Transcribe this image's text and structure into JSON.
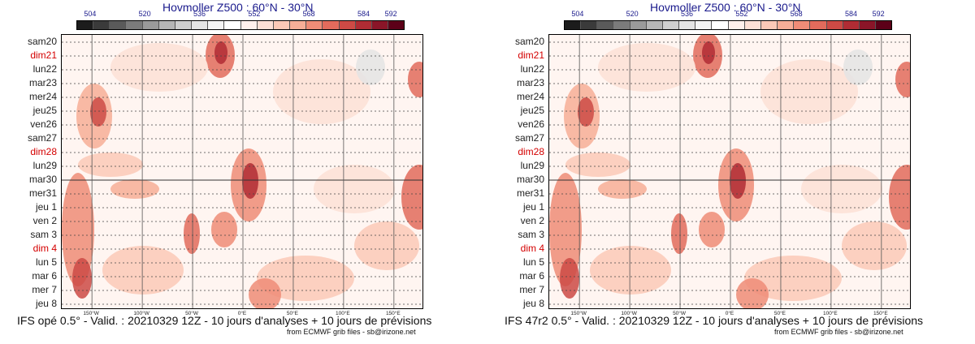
{
  "colors": {
    "scale": [
      "#1c1c1c",
      "#3a3a3a",
      "#5a5a5a",
      "#7b7b7b",
      "#9a9a9a",
      "#b6b6b6",
      "#cfcfcf",
      "#e4e4e4",
      "#f4f4f4",
      "#ffffff",
      "#fff0ec",
      "#fde0d6",
      "#fbc9b7",
      "#f7ae97",
      "#ef8c77",
      "#e26b5c",
      "#cd4a45",
      "#b02c34",
      "#8a1528",
      "#5c0018"
    ],
    "day_normal": "#222222",
    "day_weekend": "#d40000",
    "title": "#1a1a8c"
  },
  "credit": "from ECMWF grib files - sb@irizone.net",
  "chart_data": [
    {
      "type": "heatmap",
      "title": "Hovmoller Z500 : 60°N - 30°N",
      "colorbar": {
        "tick_labels": [
          "504",
          "520",
          "536",
          "552",
          "568",
          "584",
          "592"
        ],
        "tick_values": [
          504,
          520,
          536,
          552,
          568,
          584,
          592
        ],
        "range": [
          500,
          596
        ]
      },
      "y_labels": [
        {
          "label": "sam20",
          "weekend": false
        },
        {
          "label": "dim21",
          "weekend": true
        },
        {
          "label": "lun22",
          "weekend": false
        },
        {
          "label": "mar23",
          "weekend": false
        },
        {
          "label": "mer24",
          "weekend": false
        },
        {
          "label": "jeu25",
          "weekend": false
        },
        {
          "label": "ven26",
          "weekend": false
        },
        {
          "label": "sam27",
          "weekend": false
        },
        {
          "label": "dim28",
          "weekend": true
        },
        {
          "label": "lun29",
          "weekend": false
        },
        {
          "label": "mar30",
          "weekend": false
        },
        {
          "label": "mer31",
          "weekend": false
        },
        {
          "label": "jeu 1",
          "weekend": false
        },
        {
          "label": "ven 2",
          "weekend": false
        },
        {
          "label": "sam 3",
          "weekend": false
        },
        {
          "label": "dim 4",
          "weekend": true
        },
        {
          "label": "lun 5",
          "weekend": false
        },
        {
          "label": "mar 6",
          "weekend": false
        },
        {
          "label": "mer 7",
          "weekend": false
        },
        {
          "label": "jeu 8",
          "weekend": false
        }
      ],
      "x_ticks": [
        {
          "label": "150°W",
          "lon": -150
        },
        {
          "label": "100°W",
          "lon": -100
        },
        {
          "label": "50°W",
          "lon": -50
        },
        {
          "label": "0°E",
          "lon": 0
        },
        {
          "label": "50°E",
          "lon": 50
        },
        {
          "label": "100°E",
          "lon": 100
        },
        {
          "label": "150°E",
          "lon": 150
        }
      ],
      "xlim": [
        -180,
        180
      ],
      "analysis_forecast_split": "mar30",
      "footer": "IFS opé 0.5° - Valid. : 20210329 12Z - 10 jours d'analyses + 10 jours de prévisions"
    },
    {
      "type": "heatmap",
      "title": "Hovmoller Z500 : 60°N - 30°N",
      "colorbar": {
        "tick_labels": [
          "504",
          "520",
          "536",
          "552",
          "568",
          "584",
          "592"
        ],
        "tick_values": [
          504,
          520,
          536,
          552,
          568,
          584,
          592
        ],
        "range": [
          500,
          596
        ]
      },
      "y_labels": [
        {
          "label": "sam20",
          "weekend": false
        },
        {
          "label": "dim21",
          "weekend": true
        },
        {
          "label": "lun22",
          "weekend": false
        },
        {
          "label": "mar23",
          "weekend": false
        },
        {
          "label": "mer24",
          "weekend": false
        },
        {
          "label": "jeu25",
          "weekend": false
        },
        {
          "label": "ven26",
          "weekend": false
        },
        {
          "label": "sam27",
          "weekend": false
        },
        {
          "label": "dim28",
          "weekend": true
        },
        {
          "label": "lun29",
          "weekend": false
        },
        {
          "label": "mar30",
          "weekend": false
        },
        {
          "label": "mer31",
          "weekend": false
        },
        {
          "label": "jeu 1",
          "weekend": false
        },
        {
          "label": "ven 2",
          "weekend": false
        },
        {
          "label": "sam 3",
          "weekend": false
        },
        {
          "label": "dim 4",
          "weekend": true
        },
        {
          "label": "lun 5",
          "weekend": false
        },
        {
          "label": "mar 6",
          "weekend": false
        },
        {
          "label": "mer 7",
          "weekend": false
        },
        {
          "label": "jeu 8",
          "weekend": false
        }
      ],
      "x_ticks": [
        {
          "label": "150°W",
          "lon": -150
        },
        {
          "label": "100°W",
          "lon": -100
        },
        {
          "label": "50°W",
          "lon": -50
        },
        {
          "label": "0°E",
          "lon": 0
        },
        {
          "label": "50°E",
          "lon": 50
        },
        {
          "label": "100°E",
          "lon": 100
        },
        {
          "label": "150°E",
          "lon": 150
        }
      ],
      "xlim": [
        -180,
        180
      ],
      "analysis_forecast_split": "mar30",
      "footer": "IFS 47r2 0.5° - Valid. : 20210329 12Z - 10 jours d'analyses + 10 jours de prévisions"
    }
  ]
}
